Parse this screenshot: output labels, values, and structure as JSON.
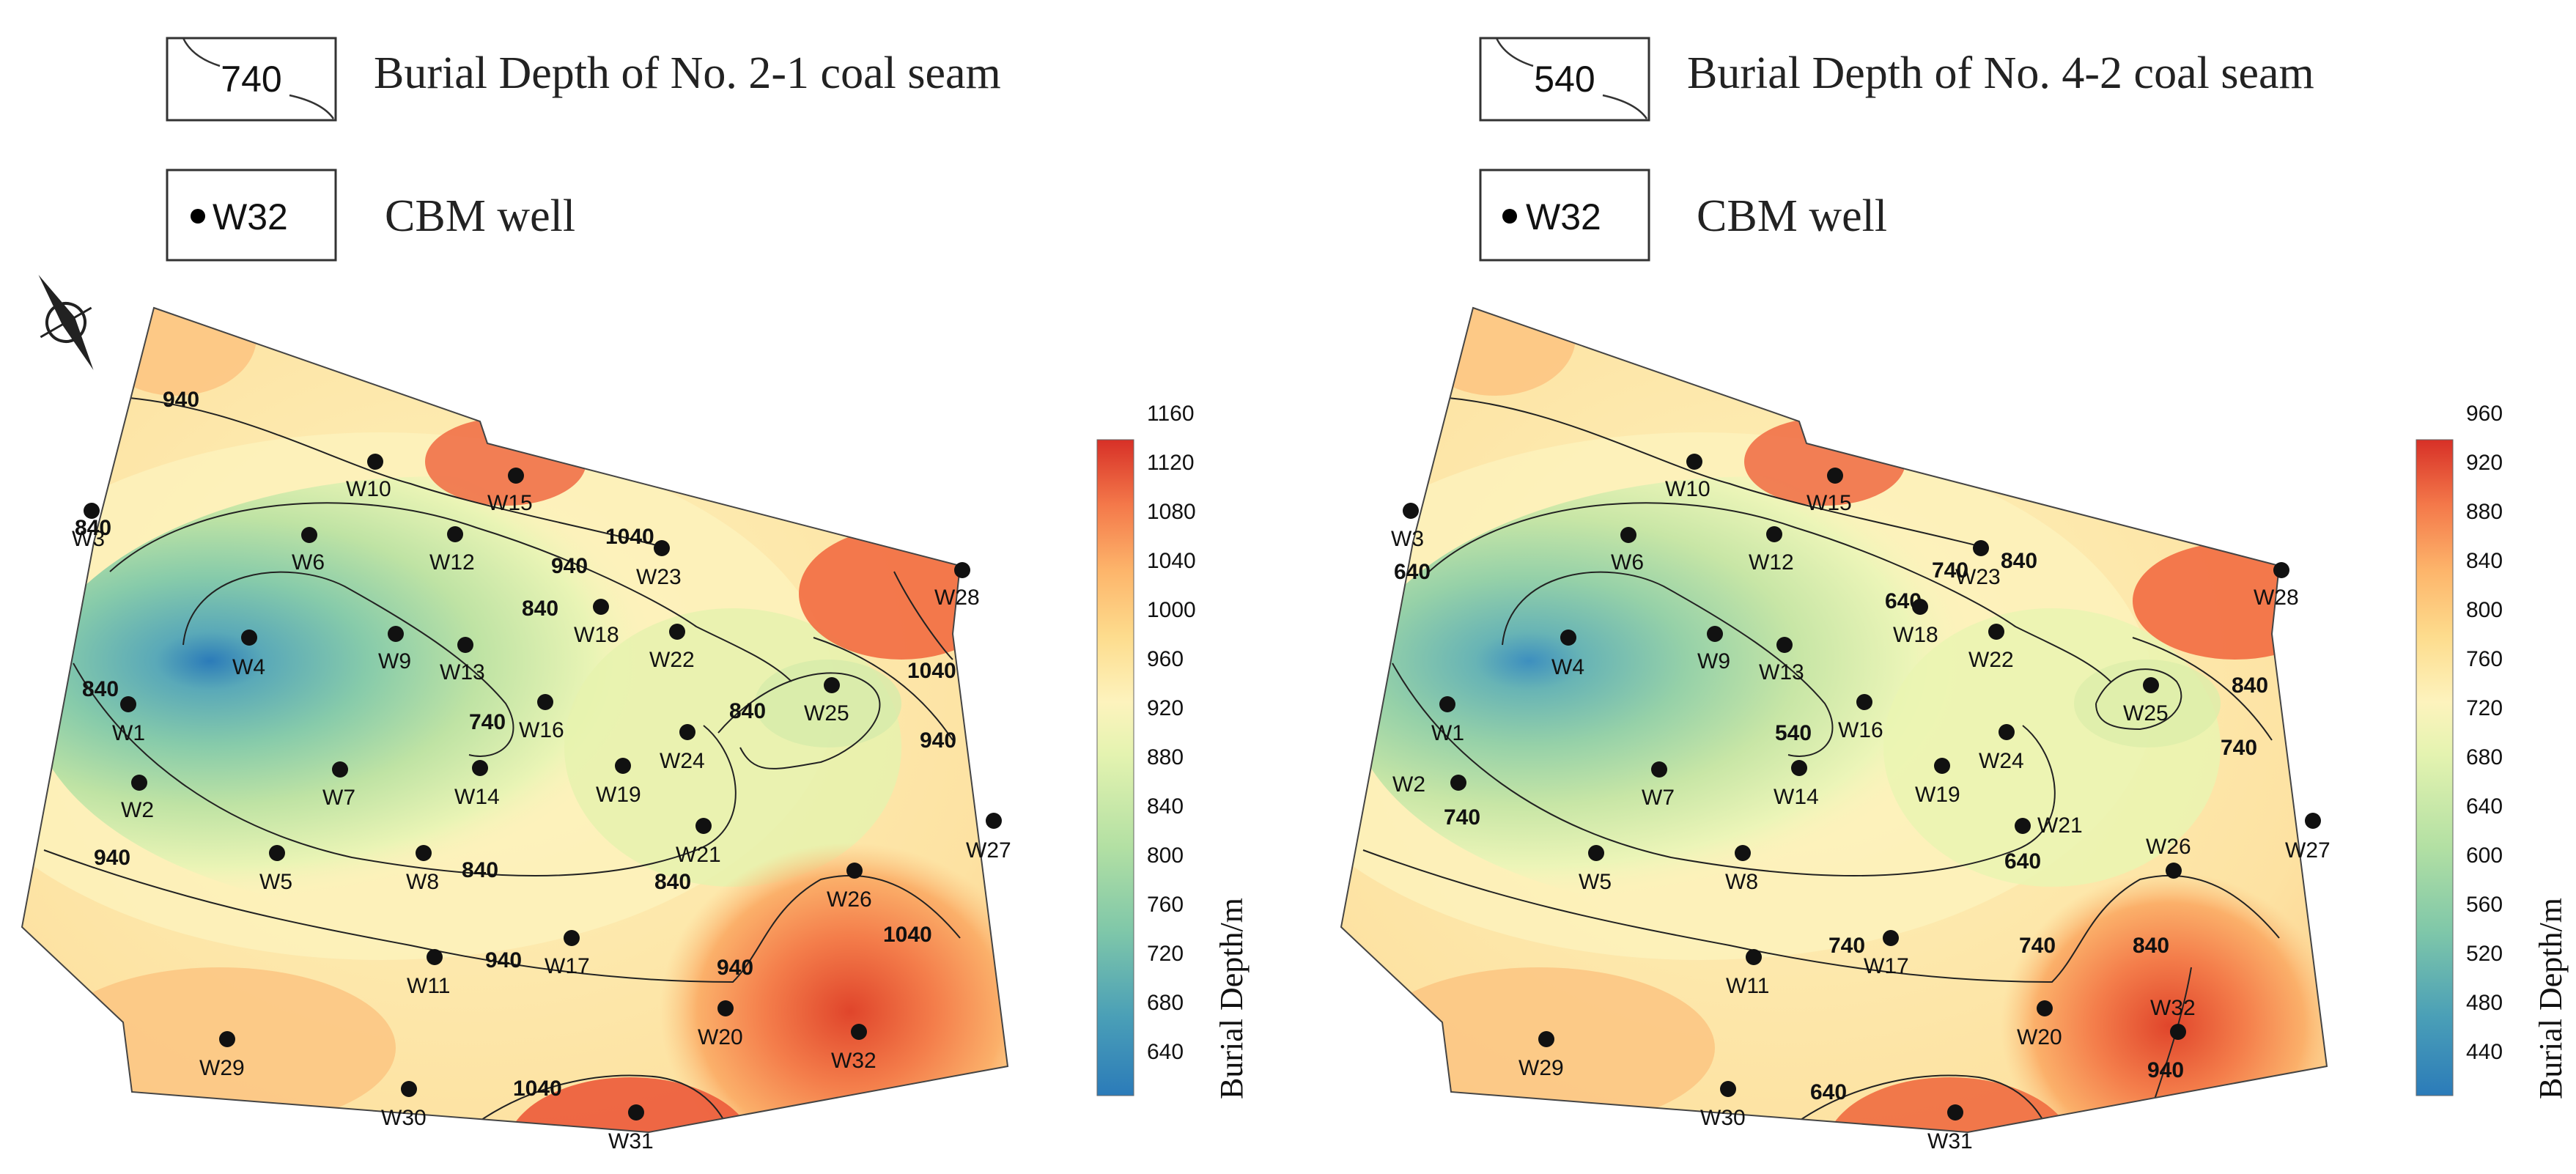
{
  "legend": {
    "left_contour_value": "740",
    "left_contour_text": "Burial Depth of No. 2-1 coal seam",
    "right_contour_value": "540",
    "right_contour_text": "Burial Depth of No. 4-2 coal seam",
    "well_symbol_label": "W32",
    "well_text": "CBM well"
  },
  "colorbar_title": "Burial Depth/m",
  "maps": [
    {
      "seam": "No. 2-1 coal seam",
      "colorbar_ticks": [
        "640",
        "680",
        "720",
        "760",
        "800",
        "840",
        "880",
        "920",
        "960",
        "1000",
        "1040",
        "1080",
        "1120",
        "1160"
      ],
      "contour_labels": [
        "940",
        "840",
        "1040",
        "940",
        "840",
        "840",
        "740",
        "840",
        "1040",
        "940",
        "940",
        "840",
        "840",
        "940",
        "940",
        "1040",
        "1040"
      ]
    },
    {
      "seam": "No. 4-2 coal seam",
      "colorbar_ticks": [
        "440",
        "480",
        "520",
        "560",
        "600",
        "640",
        "680",
        "720",
        "760",
        "800",
        "840",
        "880",
        "920",
        "960"
      ],
      "contour_labels": [
        "640",
        "740",
        "840",
        "640",
        "540",
        "840",
        "740",
        "740",
        "640",
        "740",
        "740",
        "840",
        "940",
        "640"
      ]
    }
  ],
  "wells": [
    "W1",
    "W2",
    "W3",
    "W4",
    "W5",
    "W6",
    "W7",
    "W8",
    "W9",
    "W10",
    "W11",
    "W12",
    "W13",
    "W14",
    "W15",
    "W16",
    "W17",
    "W18",
    "W19",
    "W20",
    "W21",
    "W22",
    "W23",
    "W24",
    "W25",
    "W26",
    "W27",
    "W28",
    "W29",
    "W30",
    "W31",
    "W32"
  ],
  "colors": {
    "deep": "#d73027",
    "mid": "#fdf5bf",
    "shallow": "#2c7fb8"
  },
  "icons": [
    "north-arrow-icon"
  ]
}
